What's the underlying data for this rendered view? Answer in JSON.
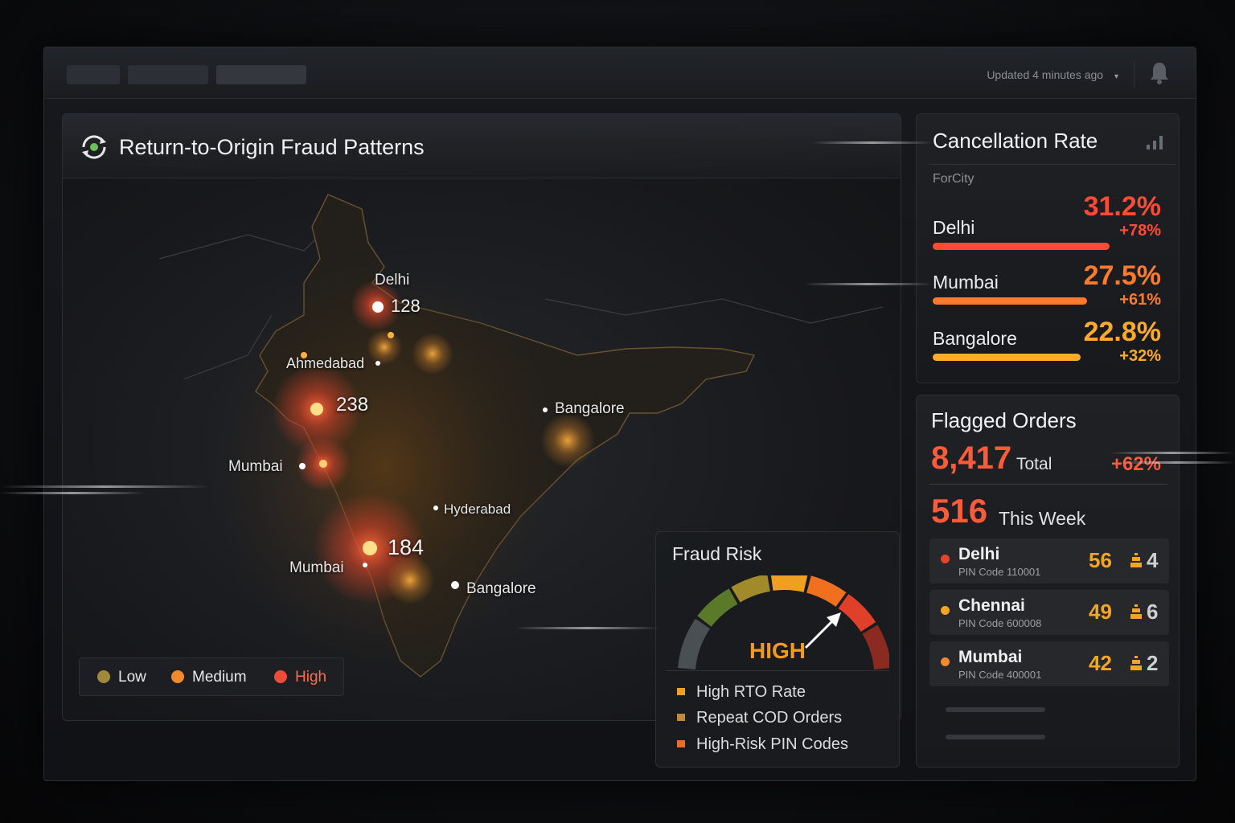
{
  "topbar": {
    "updated_text": "Updated 4 minutes ago",
    "caret_icon": "▾",
    "bell_icon": "bell-icon"
  },
  "map": {
    "title": "Return-to-Origin Fraud Patterns",
    "title_icon": "refresh-target-icon",
    "cities": [
      {
        "label": "Delhi"
      },
      {
        "label": "Ahmedabad"
      },
      {
        "label": "Mumbai"
      },
      {
        "label": "Bangalore"
      },
      {
        "label": "Hyderabad"
      },
      {
        "label": "Mumbai"
      },
      {
        "label": "Bangalore"
      }
    ],
    "hotspots": [
      {
        "count": "128",
        "level": "High"
      },
      {
        "count": "238",
        "level": "High"
      },
      {
        "count": "184",
        "level": "High"
      }
    ],
    "legend": [
      {
        "label": "Low",
        "color": "#a08a3a"
      },
      {
        "label": "Medium",
        "color": "#f08a2c"
      },
      {
        "label": "High",
        "color": "#f04a3a"
      }
    ]
  },
  "fraud_risk": {
    "title": "Fraud Risk",
    "level": "HIGH",
    "level_fraction": 0.78,
    "factors": [
      {
        "label": "High RTO Rate"
      },
      {
        "label": "Repeat COD Orders"
      },
      {
        "label": "High-Risk PIN Codes"
      }
    ]
  },
  "cancellation": {
    "title": "Cancellation Rate",
    "subtitle": "ForCity",
    "icon": "bar-chart-icon",
    "rows": [
      {
        "city": "Delhi",
        "rate": "31.2%",
        "change": "+78%",
        "color": "#ff4b33",
        "fill": 0.31
      },
      {
        "city": "Mumbai",
        "rate": "27.5%",
        "change": "+61%",
        "color": "#ff7a2a",
        "fill": 0.275
      },
      {
        "city": "Bangalore",
        "rate": "22.8%",
        "change": "+32%",
        "color": "#ffab2a",
        "fill": 0.228
      }
    ]
  },
  "flagged": {
    "title": "Flagged Orders",
    "total": "8,417",
    "total_label": "Total",
    "total_change": "+62%",
    "week": "516",
    "week_label": "This Week",
    "rows": [
      {
        "city": "Delhi",
        "pin": "PIN Code 110001",
        "count": "56",
        "sub": "4",
        "dot": "#e2452c"
      },
      {
        "city": "Chennai",
        "pin": "PIN Code 600008",
        "count": "49",
        "sub": "6",
        "dot": "#f5a524"
      },
      {
        "city": "Mumbai",
        "pin": "PIN Code 400001",
        "count": "42",
        "sub": "2",
        "dot": "#f08a2c"
      }
    ]
  }
}
